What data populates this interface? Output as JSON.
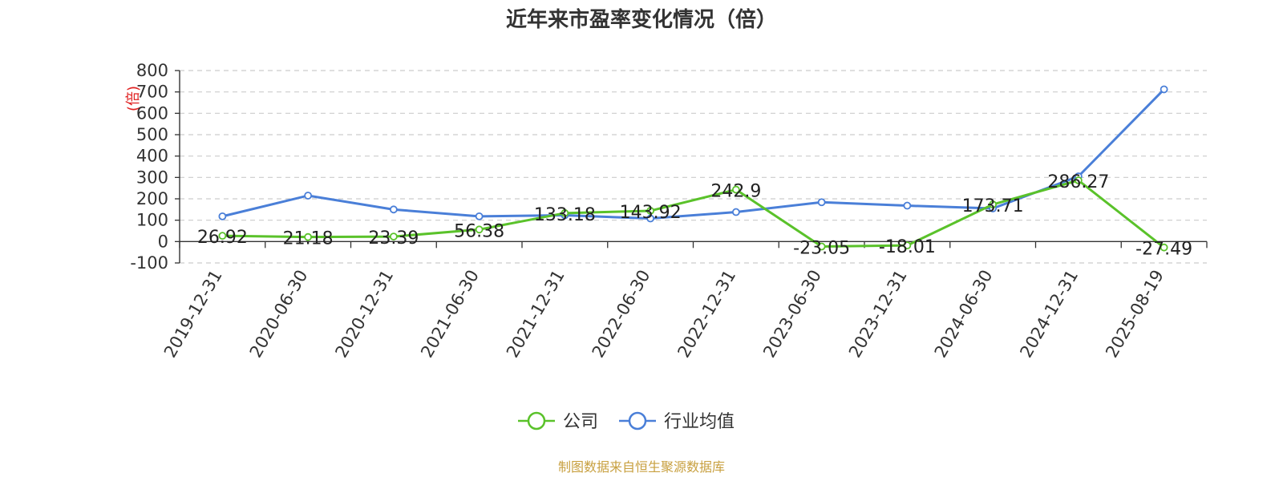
{
  "title": "近年来市盈率变化情况（倍）",
  "source_note": "制图数据来自恒生聚源数据库",
  "colors": {
    "company": "#5ac22a",
    "industry": "#4a7fd8",
    "unit_label": "#e02020",
    "source": "#c8a040",
    "grid": "#cccccc",
    "axis": "#333333"
  },
  "chart_data": {
    "type": "line",
    "title": "近年来市盈率变化情况（倍）",
    "ylabel": "(倍)",
    "xlabel": "",
    "ylim": [
      -100,
      800
    ],
    "yticks": [
      -100,
      0,
      100,
      200,
      300,
      400,
      500,
      600,
      700,
      800
    ],
    "grid": true,
    "legend_position": "bottom",
    "categories": [
      "2019-12-31",
      "2020-06-30",
      "2020-12-31",
      "2021-06-30",
      "2021-12-31",
      "2022-06-30",
      "2022-12-31",
      "2023-06-30",
      "2023-12-31",
      "2024-06-30",
      "2024-12-31",
      "2025-08-19"
    ],
    "series": [
      {
        "name": "公司",
        "values": [
          26.92,
          21.18,
          23.39,
          56.38,
          133.18,
          143.92,
          242.9,
          -23.05,
          -18.01,
          173.71,
          286.27,
          -27.49
        ],
        "labels": [
          "26.92",
          "21.18",
          "23.39",
          "56.38",
          "133.18",
          "143.92",
          "242.9",
          "-23.05",
          "-18.01",
          "173.71",
          "286.27",
          "-27.49"
        ]
      },
      {
        "name": "行业均值",
        "values": [
          118,
          215,
          150,
          118,
          123,
          108,
          138,
          184,
          168,
          155,
          305,
          712
        ]
      }
    ]
  }
}
